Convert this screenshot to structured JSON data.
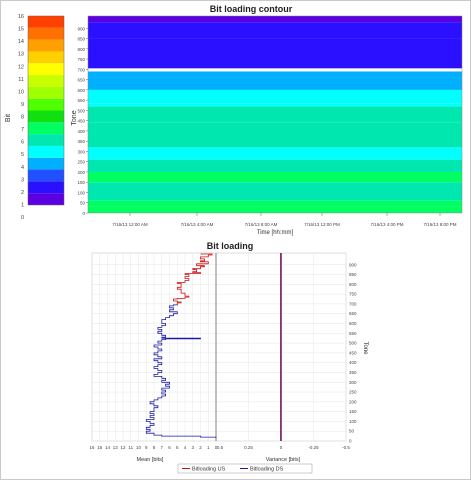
{
  "chart_data": [
    {
      "type": "heatmap",
      "title": "Bit loading contour",
      "xlabel": "Time [hh:mm]",
      "ylabel": "Tone",
      "x_ticks": [
        "7/16/13 12:00 AM",
        "7/16/13 4:00 AM",
        "7/16/13 8:00 AM",
        "7/16/13 12:00 PM",
        "7/16/13 4:00 PM",
        "7/16/13 8:00 PM"
      ],
      "y_ticks": [
        0,
        50,
        100,
        150,
        200,
        250,
        300,
        350,
        400,
        450,
        500,
        550,
        600,
        650,
        700,
        750,
        800,
        850,
        900
      ],
      "ylim": [
        0,
        960
      ],
      "colorbar": {
        "label": "Bit",
        "ticks": [
          0,
          1,
          2,
          3,
          4,
          5,
          6,
          7,
          8,
          9,
          10,
          11,
          12,
          13,
          14,
          15,
          16
        ],
        "range": [
          0,
          16
        ],
        "colors": [
          "#5b00e0",
          "#2a10ff",
          "#2050ff",
          "#00b0ff",
          "#00ffff",
          "#00e8b0",
          "#00ff60",
          "#10e010",
          "#50ff00",
          "#a0ff00",
          "#c8ff00",
          "#ffff00",
          "#ffd000",
          "#ffa000",
          "#ff7000",
          "#ff4000"
        ]
      },
      "bands": [
        {
          "from": 0,
          "to": 30,
          "bits": 6.5
        },
        {
          "from": 30,
          "to": 60,
          "bits": 6
        },
        {
          "from": 60,
          "to": 100,
          "bits": 5.5
        },
        {
          "from": 100,
          "to": 150,
          "bits": 5
        },
        {
          "from": 150,
          "to": 200,
          "bits": 6
        },
        {
          "from": 200,
          "to": 260,
          "bits": 5
        },
        {
          "from": 260,
          "to": 320,
          "bits": 4.5
        },
        {
          "from": 320,
          "to": 380,
          "bits": 5
        },
        {
          "from": 380,
          "to": 440,
          "bits": 5.8
        },
        {
          "from": 440,
          "to": 520,
          "bits": 5
        },
        {
          "from": 520,
          "to": 535,
          "bits": 4.5
        },
        {
          "from": 535,
          "to": 600,
          "bits": 4
        },
        {
          "from": 600,
          "to": 660,
          "bits": 3.5
        },
        {
          "from": 660,
          "to": 690,
          "bits": 3
        },
        {
          "from": 690,
          "to": 705,
          "bits": 0
        },
        {
          "from": 705,
          "to": 770,
          "bits": 1.5
        },
        {
          "from": 770,
          "to": 850,
          "bits": 1.2
        },
        {
          "from": 850,
          "to": 930,
          "bits": 1
        },
        {
          "from": 930,
          "to": 960,
          "bits": 0.5
        }
      ]
    },
    {
      "type": "line",
      "title": "Bit loading",
      "mean_axis": {
        "label": "Mean [bits]",
        "ticks": [
          16,
          15,
          14,
          13,
          12,
          11,
          10,
          9,
          8,
          7,
          6,
          5,
          4,
          3,
          2,
          1,
          0
        ],
        "range": [
          16,
          0
        ]
      },
      "variance_axis": {
        "label": "Variance [bits]",
        "ticks": [
          "0.5",
          "0.25",
          "0",
          "-0.25",
          "-0.5"
        ],
        "range": [
          0.5,
          -0.5
        ]
      },
      "y_axis": {
        "label": "Tone",
        "ticks": [
          0,
          50,
          100,
          150,
          200,
          250,
          300,
          350,
          400,
          450,
          500,
          550,
          600,
          650,
          700,
          750,
          800,
          850,
          900
        ],
        "range": [
          0,
          960
        ]
      },
      "legend": [
        "Bitloading US",
        "Bitloading DS"
      ],
      "series": [
        {
          "name": "Bitloading US",
          "color": "#d01010",
          "points": [
            [
              2,
              955
            ],
            [
              0.5,
              950
            ],
            [
              1,
              940
            ],
            [
              2,
              930
            ],
            [
              1.5,
              920
            ],
            [
              2,
              915
            ],
            [
              1,
              905
            ],
            [
              2.5,
              895
            ],
            [
              1.5,
              890
            ],
            [
              2,
              880
            ],
            [
              3,
              875
            ],
            [
              2.5,
              865
            ],
            [
              3,
              860
            ],
            [
              2,
              855
            ],
            [
              4,
              850
            ],
            [
              3.5,
              840
            ],
            [
              4,
              830
            ],
            [
              3.5,
              820
            ],
            [
              4,
              810
            ],
            [
              5,
              805
            ],
            [
              4.5,
              795
            ],
            [
              4.5,
              785
            ],
            [
              5,
              775
            ],
            [
              4.5,
              765
            ],
            [
              4.5,
              755
            ],
            [
              4,
              745
            ],
            [
              4,
              740
            ],
            [
              3.5,
              735
            ],
            [
              4,
              728
            ],
            [
              5,
              725
            ],
            [
              5.5,
              715
            ],
            [
              5,
              710
            ],
            [
              4.5,
              705
            ],
            [
              5,
              700
            ]
          ]
        },
        {
          "name": "Bitloading DS",
          "color": "#1a1aa8",
          "points": [
            [
              5,
              700
            ],
            [
              5,
              695
            ],
            [
              5.5,
              690
            ],
            [
              6,
              680
            ],
            [
              5.5,
              670
            ],
            [
              6,
              660
            ],
            [
              5,
              650
            ],
            [
              5.5,
              640
            ],
            [
              6,
              630
            ],
            [
              6.5,
              620
            ],
            [
              7,
              610
            ],
            [
              7,
              600
            ],
            [
              6.5,
              590
            ],
            [
              7,
              580
            ],
            [
              7.5,
              570
            ],
            [
              7,
              560
            ],
            [
              7.5,
              550
            ],
            [
              7,
              540
            ],
            [
              6.5,
              530
            ],
            [
              7,
              525
            ],
            [
              2,
              522
            ],
            [
              6.5,
              518
            ],
            [
              7,
              510
            ],
            [
              7.5,
              500
            ],
            [
              7,
              490
            ],
            [
              8,
              480
            ],
            [
              7.5,
              470
            ],
            [
              7,
              460
            ],
            [
              7.5,
              450
            ],
            [
              8,
              440
            ],
            [
              7.5,
              430
            ],
            [
              7,
              420
            ],
            [
              8,
              410
            ],
            [
              7.5,
              400
            ],
            [
              7,
              390
            ],
            [
              7.5,
              380
            ],
            [
              8,
              370
            ],
            [
              7.5,
              360
            ],
            [
              7,
              350
            ],
            [
              7.5,
              340
            ],
            [
              8,
              330
            ],
            [
              7,
              320
            ],
            [
              6.5,
              310
            ],
            [
              7,
              300
            ],
            [
              6,
              290
            ],
            [
              6.5,
              280
            ],
            [
              6,
              270
            ],
            [
              7,
              260
            ],
            [
              6.5,
              250
            ],
            [
              7,
              240
            ],
            [
              6.5,
              230
            ],
            [
              7,
              220
            ],
            [
              7.5,
              210
            ],
            [
              8,
              200
            ],
            [
              8.5,
              190
            ],
            [
              8,
              180
            ],
            [
              7.5,
              170
            ],
            [
              8,
              160
            ],
            [
              8,
              150
            ],
            [
              8.5,
              140
            ],
            [
              8,
              130
            ],
            [
              8.5,
              120
            ],
            [
              8,
              110
            ],
            [
              9,
              100
            ],
            [
              8.5,
              90
            ],
            [
              8,
              80
            ],
            [
              8.5,
              70
            ],
            [
              9,
              60
            ],
            [
              8.5,
              50
            ],
            [
              9,
              40
            ],
            [
              8,
              30
            ],
            [
              7,
              25
            ],
            [
              2,
              20
            ],
            [
              0,
              15
            ]
          ]
        }
      ],
      "variance_series": [
        {
          "name": "Bitloading US",
          "color": "#d01010",
          "value": 0
        },
        {
          "name": "Bitloading DS",
          "color": "#1a1aa8",
          "value": 0
        }
      ]
    }
  ]
}
